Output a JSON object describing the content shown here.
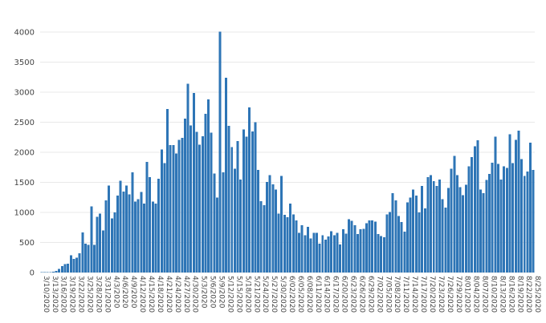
{
  "chart_data": {
    "type": "bar",
    "title": "",
    "xlabel": "",
    "ylabel": "",
    "ylim": [
      0,
      4000
    ],
    "yticks": [
      0,
      500,
      1000,
      1500,
      2000,
      2500,
      3000,
      3500,
      4000
    ],
    "grid": true,
    "legend": "none",
    "bar_color": "#2e75b6",
    "start_date": "3/10/2020",
    "xtick_labels": [
      "3/10/2020",
      "3/13/2020",
      "3/16/2020",
      "3/19/2020",
      "3/22/2020",
      "3/25/2020",
      "3/28/2020",
      "3/31/2020",
      "4/3/2020",
      "4/6/2020",
      "4/9/2020",
      "4/12/2020",
      "4/15/2020",
      "4/18/2020",
      "4/21/2020",
      "4/24/2020",
      "4/27/2020",
      "4/30/2020",
      "5/3/2020",
      "5/6/2020",
      "5/9/2020",
      "5/12/2020",
      "5/15/2020",
      "5/18/2020",
      "5/21/2020",
      "5/24/2020",
      "5/27/2020",
      "5/30/2020",
      "6/02/2020",
      "6/05/2020",
      "6/08/2020",
      "6/11/2020",
      "6/14/2020",
      "6/17/2020",
      "6/20/2020",
      "6/23/2020",
      "6/26/2020",
      "6/29/2020",
      "7/02/2020",
      "7/05/2020",
      "7/08/2020",
      "7/11/2020",
      "7/14/2020",
      "7/17/2020",
      "7/20/2020",
      "7/23/2020",
      "7/26/2020",
      "7/29/2020",
      "8/01/2020",
      "8/04/2020",
      "8/07/2020",
      "8/10/2020",
      "8/13/2020",
      "8/16/2020",
      "8/19/2020",
      "8/22/2020",
      "8/25/2020"
    ],
    "values": [
      10,
      5,
      5,
      10,
      15,
      25,
      60,
      110,
      140,
      150,
      290,
      230,
      250,
      320,
      670,
      480,
      460,
      1100,
      460,
      930,
      980,
      700,
      1200,
      1450,
      900,
      1000,
      1280,
      1530,
      1350,
      1450,
      1300,
      1670,
      1180,
      1220,
      1340,
      1150,
      1840,
      1590,
      1180,
      1150,
      1560,
      2050,
      1820,
      2720,
      2120,
      2120,
      1980,
      2210,
      2240,
      2560,
      3140,
      2450,
      2990,
      2340,
      2130,
      2270,
      2640,
      2880,
      2330,
      1650,
      1250,
      4010,
      1670,
      3240,
      2440,
      2090,
      1730,
      2190,
      1550,
      2380,
      2260,
      2750,
      2350,
      2500,
      1710,
      1190,
      1120,
      1510,
      1620,
      1470,
      1380,
      980,
      1610,
      960,
      920,
      1150,
      970,
      870,
      660,
      790,
      620,
      760,
      570,
      660,
      660,
      480,
      620,
      550,
      600,
      690,
      620,
      660,
      470,
      720,
      650,
      890,
      860,
      790,
      640,
      720,
      730,
      820,
      870,
      870,
      850,
      640,
      610,
      590,
      970,
      1010,
      1320,
      1200,
      940,
      840,
      680,
      1170,
      1250,
      1380,
      1280,
      1000,
      1440,
      1070,
      1590,
      1620,
      1520,
      1440,
      1550,
      1220,
      1080,
      1410,
      1730,
      1940,
      1620,
      1420,
      1290,
      1460,
      1770,
      1920,
      2100,
      2200,
      1380,
      1320,
      1540,
      1640,
      1830,
      2260,
      1810,
      1550,
      1770,
      1740,
      2300,
      1820,
      2210,
      2360,
      1890,
      1610,
      1680,
      2160,
      1710
    ]
  }
}
